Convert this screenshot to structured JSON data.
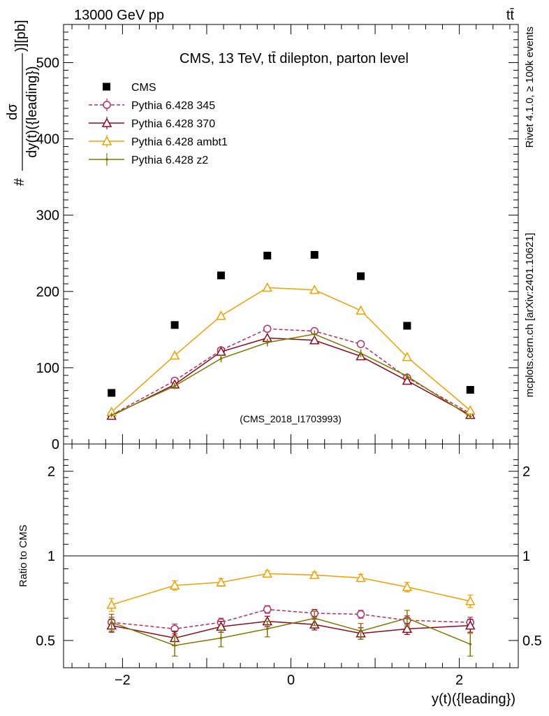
{
  "header": {
    "left": "13000 GeV pp",
    "right": "tt̄"
  },
  "side_labels": {
    "rivet": "Rivet 4.1.0, ≥ 100k events",
    "mcplots": "mcplots.cern.ch [arXiv:2401.10621]"
  },
  "chart_data": {
    "type": "line",
    "title": "CMS, 13 TeV, tt̄ dilepton, parton level",
    "watermark": "(CMS_2018_I1703993)",
    "ylabel_numer": "dσ",
    "ylabel_denom": "dy(t)({leading})",
    "ylabel_prefix": "#",
    "ylabel_suffix": ")][pb]",
    "xlabel": "y(t)({leading})",
    "ratio_ylabel": "Ratio to CMS",
    "xlim": [
      -2.7,
      2.7
    ],
    "ylim": [
      0,
      550
    ],
    "ratio_ylim": [
      0.35,
      2.3
    ],
    "x_ticks": [
      -2,
      0,
      2
    ],
    "y_ticks": [
      0,
      100,
      200,
      300,
      400,
      500
    ],
    "ratio_ticks": [
      0.5,
      1,
      2
    ],
    "x": [
      -2.13,
      -1.38,
      -0.83,
      -0.28,
      0.28,
      0.83,
      1.38,
      2.13
    ],
    "data": {
      "name": "CMS",
      "values": [
        67,
        156,
        221,
        247,
        248,
        220,
        155,
        71
      ]
    },
    "series": [
      {
        "name": "Pythia 6.428 345",
        "color": "#b03060",
        "marker": "circle",
        "dashed": true,
        "values": [
          38,
          83,
          123,
          151,
          148,
          131,
          87,
          40
        ],
        "errors": [
          2,
          3,
          4,
          4,
          4,
          4,
          3,
          2
        ],
        "ratio": [
          0.58,
          0.55,
          0.58,
          0.645,
          0.625,
          0.62,
          0.59,
          0.58
        ],
        "ratio_errors": [
          0.025,
          0.022,
          0.02,
          0.02,
          0.02,
          0.02,
          0.022,
          0.025
        ]
      },
      {
        "name": "Pythia 6.428 370",
        "color": "#8b0a1e",
        "marker": "triangle",
        "dashed": false,
        "values": [
          37,
          78,
          121,
          139,
          136,
          115,
          83,
          38
        ],
        "errors": [
          2,
          3,
          4,
          4,
          4,
          4,
          3,
          2
        ],
        "ratio": [
          0.565,
          0.51,
          0.56,
          0.585,
          0.57,
          0.53,
          0.55,
          0.565
        ],
        "ratio_errors": [
          0.03,
          0.03,
          0.025,
          0.025,
          0.025,
          0.025,
          0.025,
          0.03
        ]
      },
      {
        "name": "Pythia 6.428 ambt1",
        "color": "#f0a000",
        "marker": "triangle",
        "dashed": false,
        "values": [
          42,
          116,
          168,
          205,
          202,
          175,
          114,
          44
        ],
        "errors": [
          3,
          4,
          5,
          5,
          5,
          5,
          4,
          3
        ],
        "ratio": [
          0.67,
          0.785,
          0.805,
          0.865,
          0.855,
          0.835,
          0.775,
          0.69
        ],
        "ratio_errors": [
          0.035,
          0.03,
          0.025,
          0.02,
          0.02,
          0.025,
          0.03,
          0.035
        ]
      },
      {
        "name": "Pythia 6.428 z2",
        "color": "#7a7a00",
        "marker": "dot",
        "dashed": false,
        "values": [
          38,
          76,
          112,
          133,
          144,
          119,
          89,
          36
        ],
        "errors": [
          3,
          4,
          5,
          5,
          5,
          5,
          4,
          3
        ],
        "ratio": [
          0.58,
          0.48,
          0.51,
          0.55,
          0.6,
          0.54,
          0.6,
          0.485
        ],
        "ratio_errors": [
          0.04,
          0.04,
          0.035,
          0.035,
          0.035,
          0.035,
          0.04,
          0.045
        ]
      }
    ]
  }
}
